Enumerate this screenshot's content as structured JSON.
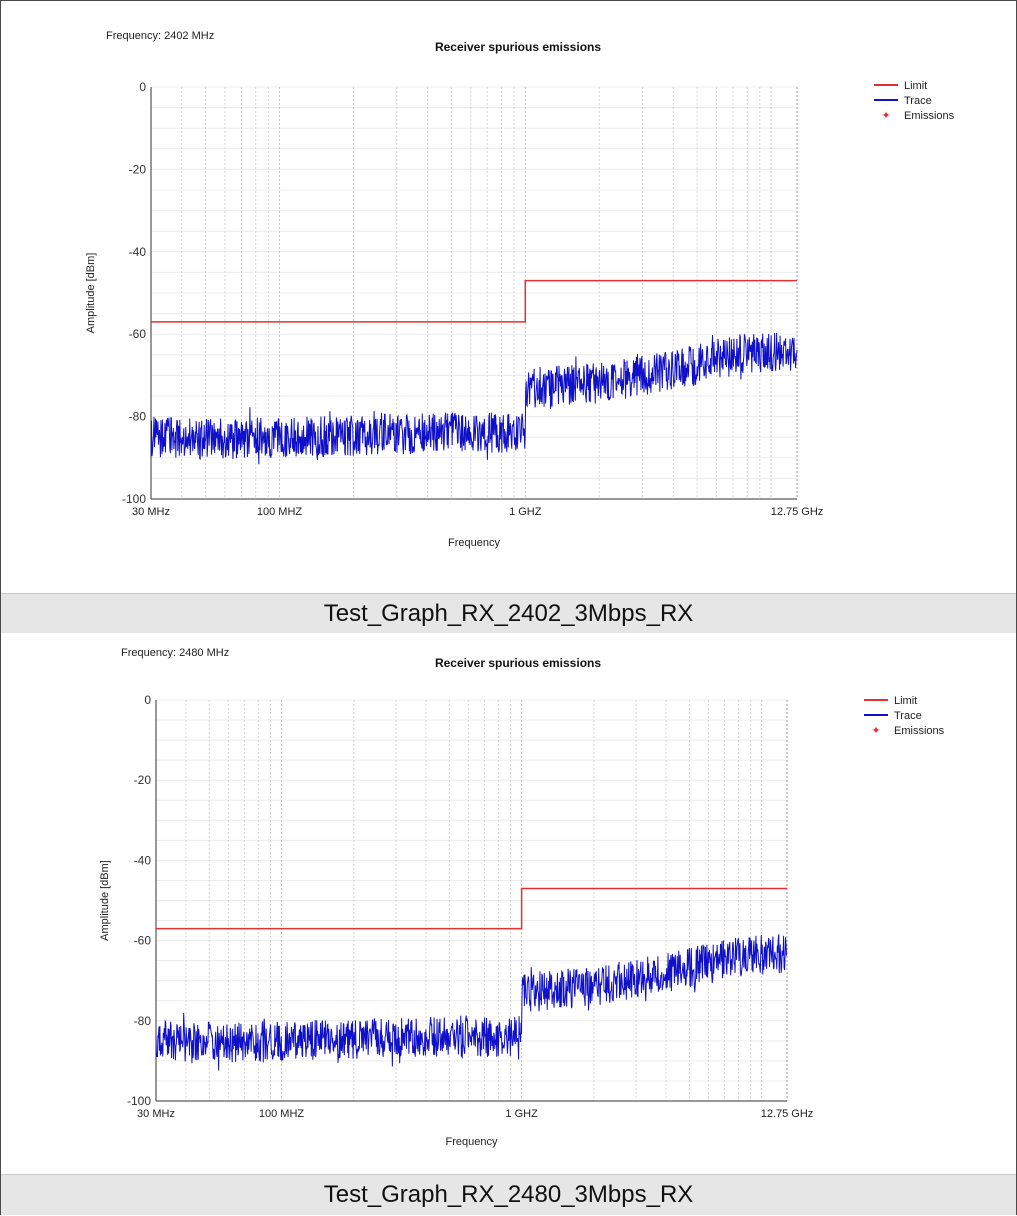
{
  "chart_data": [
    {
      "type": "line",
      "title": "Receiver spurious emissions",
      "subtitle": "Frequency: 2402 MHz",
      "xlabel": "Frequency",
      "ylabel": "Amplitude [dBm]",
      "x_scale": "log",
      "xlim_mhz": [
        30,
        12750
      ],
      "ylim": [
        -100,
        0
      ],
      "x_tick_labels": [
        {
          "value_mhz": 30,
          "label": "30 MHz"
        },
        {
          "value_mhz": 100,
          "label": "100 MHZ"
        },
        {
          "value_mhz": 1000,
          "label": "1 GHZ"
        },
        {
          "value_mhz": 12750,
          "label": "12.75 GHz"
        }
      ],
      "y_ticks": [
        0,
        -20,
        -40,
        -60,
        -80,
        -100
      ],
      "grid": true,
      "legend_position": "top-right",
      "legend": [
        {
          "label": "Limit",
          "color": "#e03030",
          "marker": "line"
        },
        {
          "label": "Trace",
          "color": "#1010c8",
          "marker": "line"
        },
        {
          "label": "Emissions",
          "color": "#e03030",
          "marker": "star"
        }
      ],
      "series": [
        {
          "name": "Limit",
          "color": "#e03030",
          "points": [
            [
              30,
              -57
            ],
            [
              1000,
              -57
            ],
            [
              1000,
              -47
            ],
            [
              12750,
              -47
            ]
          ]
        },
        {
          "name": "Trace",
          "color": "#1010c8",
          "noise_band_db": 5,
          "baseline": [
            [
              30,
              -85
            ],
            [
              60,
              -85.5
            ],
            [
              100,
              -85
            ],
            [
              200,
              -84.5
            ],
            [
              400,
              -84
            ],
            [
              1000,
              -84
            ],
            [
              1000,
              -73
            ],
            [
              2000,
              -72
            ],
            [
              4000,
              -69
            ],
            [
              6000,
              -66
            ],
            [
              8000,
              -64.5
            ],
            [
              12750,
              -64
            ]
          ]
        }
      ],
      "caption": "Test_Graph_RX_2402_3Mbps_RX"
    },
    {
      "type": "line",
      "title": "Receiver spurious emissions",
      "subtitle": "Frequency: 2480 MHz",
      "xlabel": "Frequency",
      "ylabel": "Amplitude [dBm]",
      "x_scale": "log",
      "xlim_mhz": [
        30,
        12750
      ],
      "ylim": [
        -100,
        0
      ],
      "x_tick_labels": [
        {
          "value_mhz": 30,
          "label": "30 MHz"
        },
        {
          "value_mhz": 100,
          "label": "100 MHZ"
        },
        {
          "value_mhz": 1000,
          "label": "1 GHZ"
        },
        {
          "value_mhz": 12750,
          "label": "12.75 GHz"
        }
      ],
      "y_ticks": [
        0,
        -20,
        -40,
        -60,
        -80,
        -100
      ],
      "grid": true,
      "legend_position": "top-right",
      "legend": [
        {
          "label": "Limit",
          "color": "#e03030",
          "marker": "line"
        },
        {
          "label": "Trace",
          "color": "#1010c8",
          "marker": "line"
        },
        {
          "label": "Emissions",
          "color": "#e03030",
          "marker": "star"
        }
      ],
      "series": [
        {
          "name": "Limit",
          "color": "#e03030",
          "points": [
            [
              30,
              -57
            ],
            [
              1000,
              -57
            ],
            [
              1000,
              -47
            ],
            [
              12750,
              -47
            ]
          ]
        },
        {
          "name": "Trace",
          "color": "#1010c8",
          "noise_band_db": 5,
          "baseline": [
            [
              30,
              -85
            ],
            [
              60,
              -85.5
            ],
            [
              100,
              -85
            ],
            [
              200,
              -84.5
            ],
            [
              400,
              -84
            ],
            [
              1000,
              -84
            ],
            [
              1000,
              -73
            ],
            [
              2000,
              -71.5
            ],
            [
              4000,
              -68
            ],
            [
              6000,
              -65.5
            ],
            [
              8000,
              -64
            ],
            [
              12750,
              -63
            ]
          ]
        }
      ],
      "caption": "Test_Graph_RX_2480_3Mbps_RX"
    }
  ]
}
